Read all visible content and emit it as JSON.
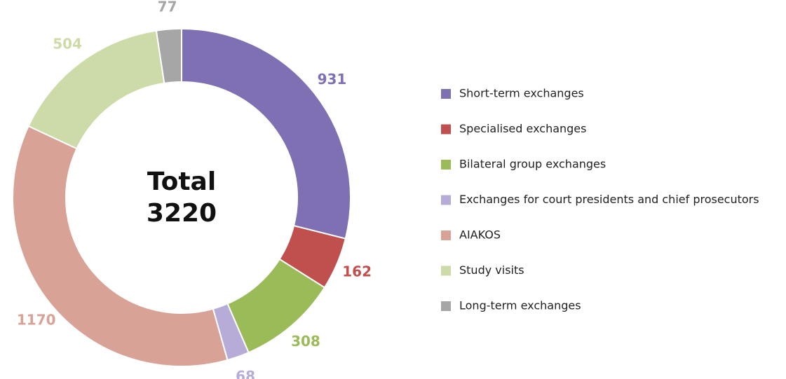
{
  "chart_data": {
    "type": "donut",
    "categories": [
      "Short-term exchanges",
      "Specialised exchanges",
      "Bilateral group exchanges",
      "Exchanges for court presidents and chief prosecutors",
      "AIAKOS",
      "Study visits",
      "Long-term exchanges"
    ],
    "values": [
      931,
      162,
      308,
      68,
      1170,
      504,
      77
    ],
    "colors": [
      "#7f6fb3",
      "#c0504d",
      "#9bbb59",
      "#b7acd8",
      "#d9a297",
      "#cddba8",
      "#a6a6a6"
    ],
    "total_label": "Total",
    "total": 3220,
    "legend": "right"
  }
}
